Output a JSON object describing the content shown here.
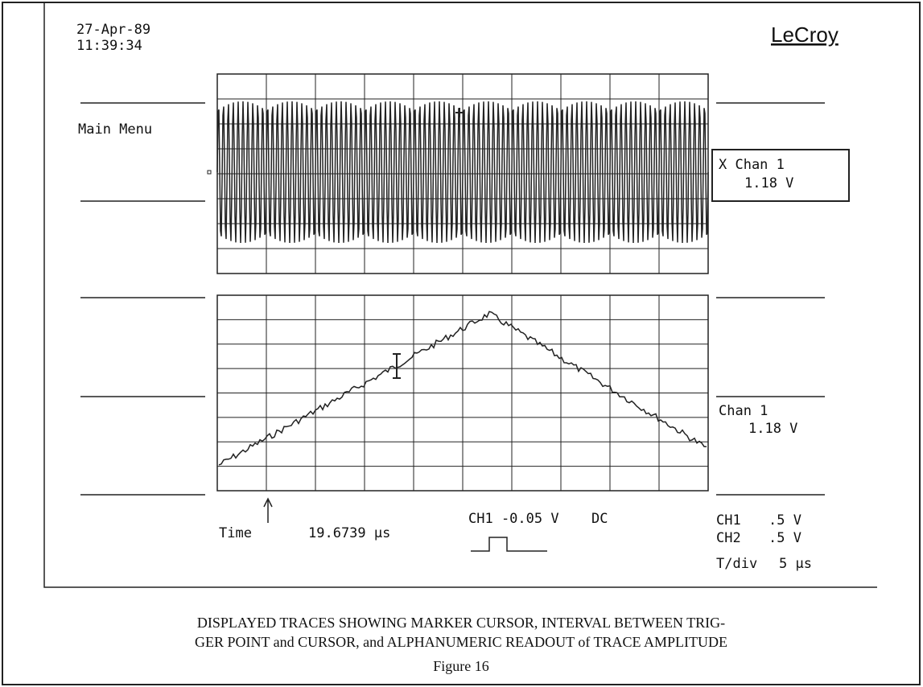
{
  "header": {
    "date": "27-Apr-89",
    "time": "11:39:34",
    "brand": "LeCroy"
  },
  "menu": "Main Menu",
  "upper_readout": {
    "label": "X Chan 1",
    "value": "1.18 V"
  },
  "lower_readout": {
    "label": "Chan 1",
    "value": "1.18 V"
  },
  "cursor": {
    "label": "Time",
    "value": "19.6739 µs"
  },
  "trigger": {
    "level": "CH1 -0.05 V",
    "coupling": "DC"
  },
  "scales": [
    {
      "channel": "CH1",
      "value": ".5 V"
    },
    {
      "channel": "CH2",
      "value": ".5 V"
    }
  ],
  "timebase": {
    "label": "T/div",
    "value": "5 µs"
  },
  "caption": {
    "line1": "DISPLAYED TRACES SHOWING MARKER CURSOR, INTERVAL BETWEEN TRIG-",
    "line2": "GER POINT and CURSOR, and ALPHANUMERIC READOUT of TRACE AMPLITUDE",
    "figure": "Figure 16"
  }
}
